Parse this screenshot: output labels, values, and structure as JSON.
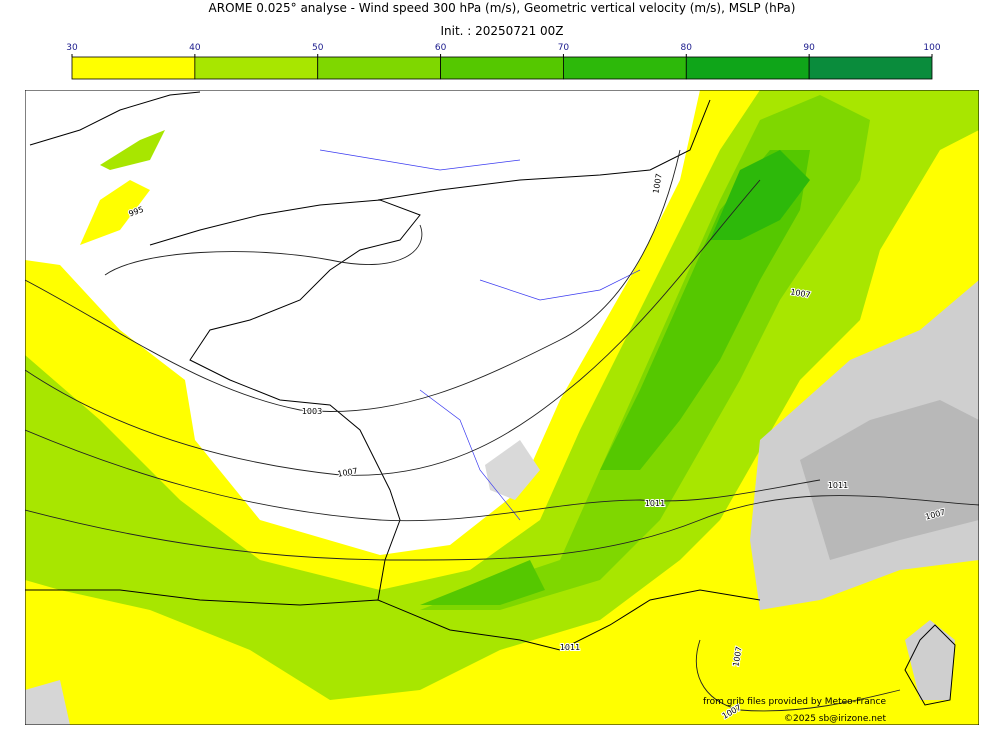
{
  "header": {
    "title": "AROME 0.025° analyse - Wind speed 300 hPa (m/s), Geometric vertical velocity (m/s), MSLP (hPa)",
    "subtitle": "Init. : 20250721 00Z"
  },
  "colorbar": {
    "ticks": [
      30,
      40,
      50,
      60,
      70,
      80,
      90,
      100
    ],
    "colors": [
      "#ffff00",
      "#a8e600",
      "#7fd700",
      "#55c800",
      "#2db90a",
      "#0fa519",
      "#0a8c3c",
      "#0a7850"
    ]
  },
  "map": {
    "contour_labels": [
      "995",
      "1003",
      "1007",
      "1007",
      "1007",
      "1011",
      "1011",
      "1007",
      "1011",
      "1007",
      "1007"
    ],
    "credits": [
      "from grib files provided by Meteo-France",
      "©2025 sb@irizone.net"
    ]
  }
}
